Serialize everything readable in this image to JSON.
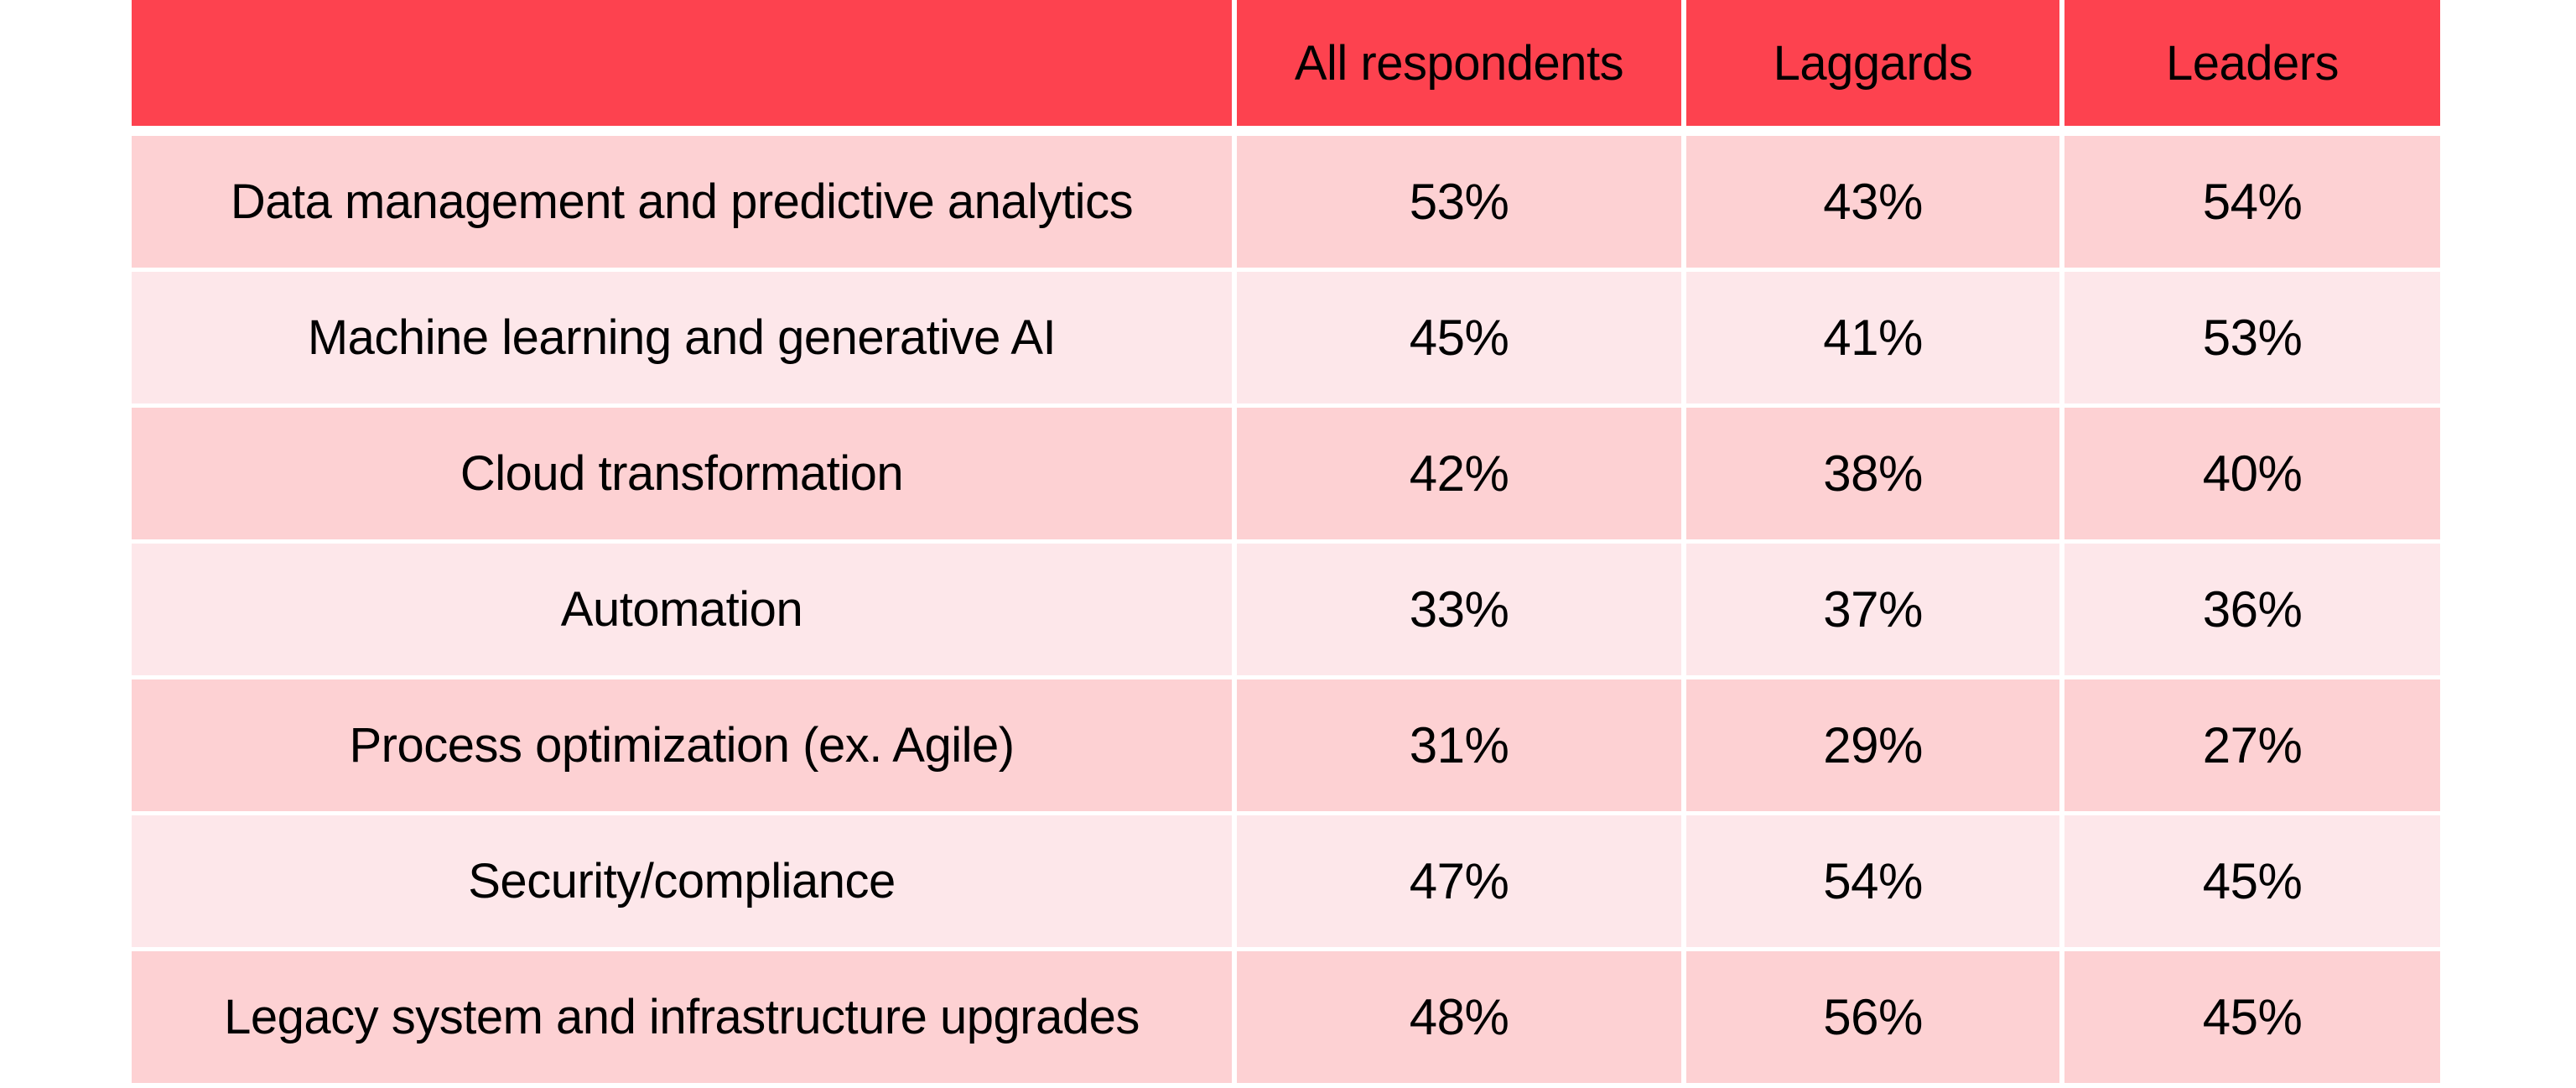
{
  "colors": {
    "header_bg": "#fd424f",
    "row_dark": "#fdd1d3",
    "row_light": "#fde7ea",
    "text": "#000000",
    "page_bg": "#ffffff"
  },
  "table": {
    "header": [
      "All respondents",
      "Laggards",
      "Leaders"
    ],
    "rows": [
      {
        "label": "Data management and predictive analytics",
        "values": [
          "53%",
          "43%",
          "54%"
        ]
      },
      {
        "label": "Machine learning and generative AI",
        "values": [
          "45%",
          "41%",
          "53%"
        ]
      },
      {
        "label": "Cloud transformation",
        "values": [
          "42%",
          "38%",
          "40%"
        ]
      },
      {
        "label": "Automation",
        "values": [
          "33%",
          "37%",
          "36%"
        ]
      },
      {
        "label": "Process optimization (ex. Agile)",
        "values": [
          "31%",
          "29%",
          "27%"
        ]
      },
      {
        "label": "Security/compliance",
        "values": [
          "47%",
          "54%",
          "45%"
        ]
      },
      {
        "label": "Legacy system and infrastructure upgrades",
        "values": [
          "48%",
          "56%",
          "45%"
        ]
      }
    ]
  },
  "chart_data": {
    "type": "table",
    "title": "",
    "categories": [
      "Data management and predictive analytics",
      "Machine learning and generative AI",
      "Cloud transformation",
      "Automation",
      "Process optimization (ex. Agile)",
      "Security/compliance",
      "Legacy system and infrastructure upgrades"
    ],
    "series": [
      {
        "name": "All respondents",
        "values": [
          53,
          45,
          42,
          33,
          31,
          47,
          48
        ]
      },
      {
        "name": "Laggards",
        "values": [
          43,
          41,
          38,
          37,
          29,
          54,
          56
        ]
      },
      {
        "name": "Leaders",
        "values": [
          54,
          53,
          40,
          36,
          27,
          45,
          45
        ]
      }
    ],
    "unit": "%",
    "legend_position": "top",
    "grid": false
  }
}
